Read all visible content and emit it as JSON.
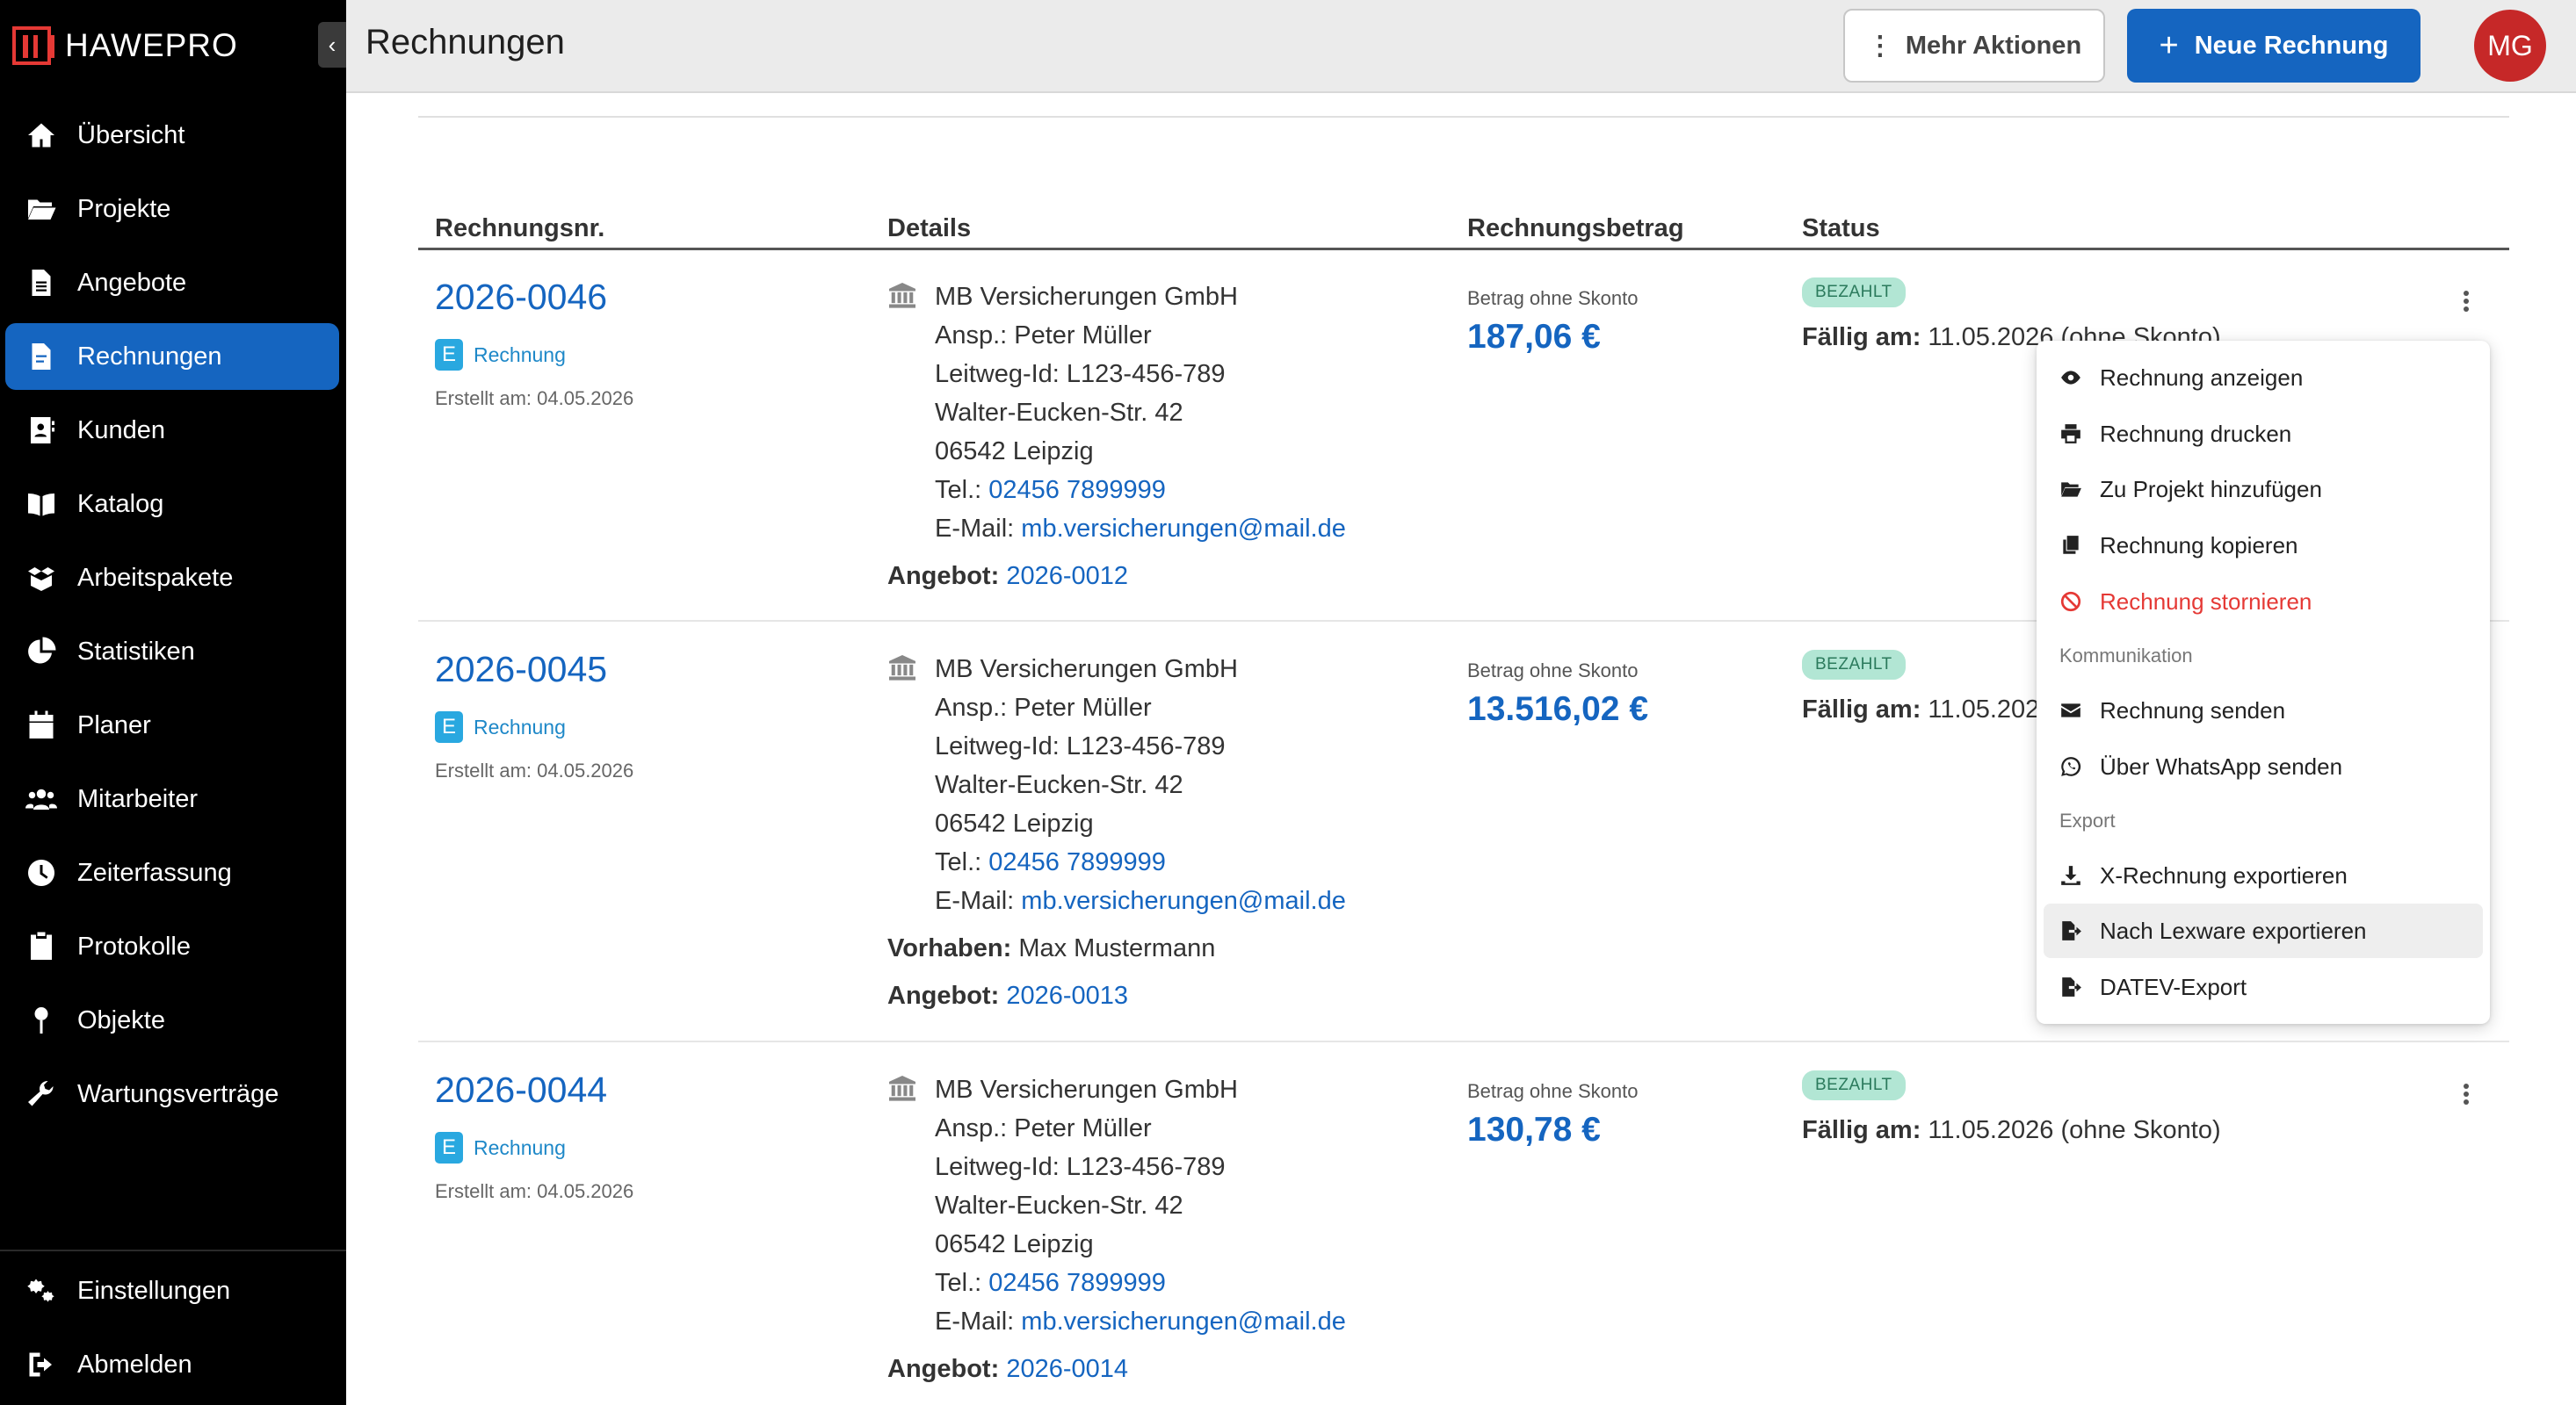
{
  "sidebar": {
    "brand": "HAWEPRO",
    "items": [
      {
        "label": "Übersicht",
        "icon": "home-icon"
      },
      {
        "label": "Projekte",
        "icon": "folder-open-icon"
      },
      {
        "label": "Angebote",
        "icon": "document-icon"
      },
      {
        "label": "Rechnungen",
        "icon": "invoice-icon",
        "active": true
      },
      {
        "label": "Kunden",
        "icon": "contact-book-icon"
      },
      {
        "label": "Katalog",
        "icon": "book-open-icon"
      },
      {
        "label": "Arbeitspakete",
        "icon": "box-open-icon"
      },
      {
        "label": "Statistiken",
        "icon": "pie-chart-icon"
      },
      {
        "label": "Planer",
        "icon": "calendar-icon"
      },
      {
        "label": "Mitarbeiter",
        "icon": "users-icon"
      },
      {
        "label": "Zeiterfassung",
        "icon": "clock-icon"
      },
      {
        "label": "Protokolle",
        "icon": "clipboard-icon"
      },
      {
        "label": "Objekte",
        "icon": "map-pin-icon"
      },
      {
        "label": "Wartungsverträge",
        "icon": "wrench-icon"
      }
    ],
    "bottom_items": [
      {
        "label": "Einstellungen",
        "icon": "gears-icon"
      },
      {
        "label": "Abmelden",
        "icon": "logout-icon"
      }
    ]
  },
  "header": {
    "title": "Rechnungen",
    "more_actions": "Mehr Aktionen",
    "new_invoice": "Neue Rechnung",
    "avatar_initials": "MG"
  },
  "table": {
    "columns": [
      "Rechnungsnr.",
      "Details",
      "Rechnungsbetrag",
      "Status"
    ],
    "rows": [
      {
        "number": "2026-0046",
        "type_badge": "E",
        "type_label": "Rechnung",
        "created": "Erstellt am: 04.05.2026",
        "company": "MB Versicherungen GmbH",
        "contact": "Ansp.: Peter Müller",
        "leitweg": "Leitweg-Id: L123-456-789",
        "street": "Walter-Eucken-Str. 42",
        "city": "06542 Leipzig",
        "phone_label": "Tel.: ",
        "phone": "02456 7899999",
        "email_label": "E-Mail: ",
        "email": "mb.versicherungen@mail.de",
        "offer_label": "Angebot:",
        "offer": "2026-0012",
        "amount_label": "Betrag ohne Skonto",
        "amount": "187,06 €",
        "status": "BEZAHLT",
        "due_label": "Fällig am:",
        "due": "11.05.2026 (ohne Skonto)"
      },
      {
        "number": "2026-0045",
        "type_badge": "E",
        "type_label": "Rechnung",
        "created": "Erstellt am: 04.05.2026",
        "company": "MB Versicherungen GmbH",
        "contact": "Ansp.: Peter Müller",
        "leitweg": "Leitweg-Id: L123-456-789",
        "street": "Walter-Eucken-Str. 42",
        "city": "06542 Leipzig",
        "phone_label": "Tel.: ",
        "phone": "02456 7899999",
        "email_label": "E-Mail: ",
        "email": "mb.versicherungen@mail.de",
        "project_label": "Vorhaben:",
        "project": "Max Mustermann",
        "offer_label": "Angebot:",
        "offer": "2026-0013",
        "amount_label": "Betrag ohne Skonto",
        "amount": "13.516,02 €",
        "status": "BEZAHLT",
        "due_label": "Fällig am:",
        "due": "11.05.2026"
      },
      {
        "number": "2026-0044",
        "type_badge": "E",
        "type_label": "Rechnung",
        "created": "Erstellt am: 04.05.2026",
        "company": "MB Versicherungen GmbH",
        "contact": "Ansp.: Peter Müller",
        "leitweg": "Leitweg-Id: L123-456-789",
        "street": "Walter-Eucken-Str. 42",
        "city": "06542 Leipzig",
        "phone_label": "Tel.: ",
        "phone": "02456 7899999",
        "email_label": "E-Mail: ",
        "email": "mb.versicherungen@mail.de",
        "offer_label": "Angebot:",
        "offer": "2026-0014",
        "amount_label": "Betrag ohne Skonto",
        "amount": "130,78 €",
        "status": "BEZAHLT",
        "due_label": "Fällig am:",
        "due": "11.05.2026 (ohne Skonto)"
      }
    ]
  },
  "menu": {
    "items": [
      {
        "label": "Rechnung anzeigen",
        "icon": "eye-icon"
      },
      {
        "label": "Rechnung drucken",
        "icon": "printer-icon"
      },
      {
        "label": "Zu Projekt hinzufügen",
        "icon": "folder-open-icon"
      },
      {
        "label": "Rechnung kopieren",
        "icon": "copy-icon"
      },
      {
        "label": "Rechnung stornieren",
        "icon": "ban-icon",
        "danger": true
      }
    ],
    "section_communication": "Kommunikation",
    "communication_items": [
      {
        "label": "Rechnung senden",
        "icon": "envelope-icon"
      },
      {
        "label": "Über WhatsApp senden",
        "icon": "whatsapp-icon"
      }
    ],
    "section_export": "Export",
    "export_items": [
      {
        "label": "X-Rechnung exportieren",
        "icon": "download-icon"
      },
      {
        "label": "Nach Lexware exportieren",
        "icon": "file-export-icon",
        "hover": true
      },
      {
        "label": "DATEV-Export",
        "icon": "file-export-icon"
      }
    ]
  },
  "colors": {
    "primary": "#1565c0",
    "sidebar_bg": "#000000",
    "status_paid_bg": "#b2e6d4",
    "danger": "#e53935",
    "avatar_bg": "#c62828"
  }
}
